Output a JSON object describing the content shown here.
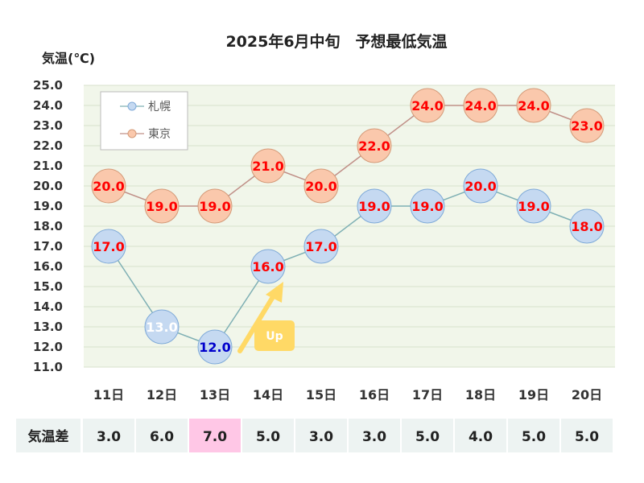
{
  "chart_data": {
    "type": "line",
    "title": "2025年6月中旬　予想最低気温",
    "ylabel": "気温(℃)",
    "ylim": [
      11,
      25
    ],
    "yticks": [
      "11.0",
      "12.0",
      "13.0",
      "14.0",
      "15.0",
      "16.0",
      "17.0",
      "18.0",
      "19.0",
      "20.0",
      "21.0",
      "22.0",
      "23.0",
      "24.0",
      "25.0"
    ],
    "categories": [
      "11日",
      "12日",
      "13日",
      "14日",
      "15日",
      "16日",
      "17日",
      "18日",
      "19日",
      "20日"
    ],
    "series": [
      {
        "name": "札幌",
        "values": [
          17,
          13,
          12,
          16,
          17,
          19,
          19,
          20,
          19,
          18
        ],
        "labels": [
          "17.0",
          "13.0",
          "12.0",
          "16.0",
          "17.0",
          "19.0",
          "19.0",
          "20.0",
          "19.0",
          "18.0"
        ],
        "fill": "#c5d9f1",
        "stroke": "#7faad8",
        "line": "#7fb0b4"
      },
      {
        "name": "東京",
        "values": [
          20,
          19,
          19,
          21,
          20,
          22,
          24,
          24,
          24,
          23
        ],
        "labels": [
          "20.0",
          "19.0",
          "19.0",
          "21.0",
          "20.0",
          "22.0",
          "24.0",
          "24.0",
          "24.0",
          "23.0"
        ],
        "fill": "#fac8ac",
        "stroke": "#d49a78",
        "line": "#c09088"
      }
    ],
    "legend_position": "top-left",
    "grid": true,
    "annotation": "Up",
    "difference_row": {
      "label": "気温差",
      "values": [
        "3.0",
        "6.0",
        "7.0",
        "5.0",
        "3.0",
        "3.0",
        "5.0",
        "4.0",
        "5.0",
        "5.0"
      ],
      "highlight_index": 2
    }
  },
  "colors": {
    "plot_bg": "#f1f6ea",
    "grid": "#d8e2cc",
    "label_red": "#ff0000",
    "label_white": "#ffffff",
    "label_blue": "#0000cc",
    "arrow": "#ffd966",
    "table_bg": "#edf3f2",
    "highlight_bg": "#ffc7e6"
  }
}
